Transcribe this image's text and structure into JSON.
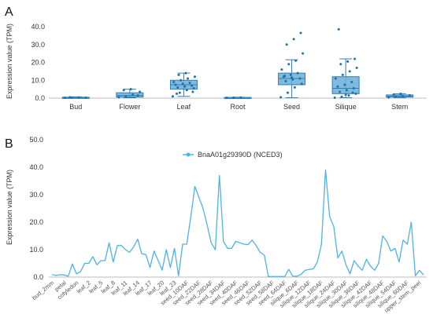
{
  "panels": {
    "a": {
      "letter": "A"
    },
    "b": {
      "letter": "B"
    }
  },
  "colors": {
    "box_fill": "#6aaed6",
    "box_stroke": "#2f7fb5",
    "point": "#1f6fa8",
    "line": "#4db3e6",
    "axis": "#666666",
    "grid": "#e6e6e6",
    "text": "#333333"
  },
  "chart_data": [
    {
      "type": "box",
      "ylabel": "Expression value (TPM)",
      "ylim": [
        0,
        40
      ],
      "yticks": [
        "0.0",
        "10.0",
        "20.0",
        "30.0",
        "40.0"
      ],
      "categories": [
        "Bud",
        "Flower",
        "Leaf",
        "Root",
        "Seed",
        "Silique",
        "Stem"
      ],
      "boxes": [
        {
          "min": 0.1,
          "q1": 0.2,
          "median": 0.3,
          "q3": 0.5,
          "max": 0.7
        },
        {
          "min": 0.2,
          "q1": 0.6,
          "median": 1.5,
          "q3": 3.0,
          "max": 5.0
        },
        {
          "min": 1.0,
          "q1": 5.0,
          "median": 7.5,
          "q3": 10.0,
          "max": 14.0
        },
        {
          "min": 0.1,
          "q1": 0.2,
          "median": 0.3,
          "q3": 0.4,
          "max": 0.5
        },
        {
          "min": 0.2,
          "q1": 7.5,
          "median": 11.0,
          "q3": 14.0,
          "max": 21.5
        },
        {
          "min": 0.2,
          "q1": 2.5,
          "median": 5.5,
          "q3": 12.0,
          "max": 22.0
        },
        {
          "min": 0.3,
          "q1": 0.6,
          "median": 1.0,
          "q3": 1.8,
          "max": 2.5
        }
      ],
      "points": [
        [
          0.2,
          0.3,
          0.4,
          0.3,
          0.5
        ],
        [
          0.5,
          1.0,
          2.0,
          3.5,
          4.5,
          5.0,
          1.5
        ],
        [
          1.0,
          3.0,
          4.5,
          5.5,
          6.0,
          6.5,
          7.0,
          7.5,
          8.0,
          8.5,
          9.0,
          10.0,
          11.0,
          12.0,
          13.0,
          14.0,
          3.5,
          2.5
        ],
        [
          0.2,
          0.3,
          0.4
        ],
        [
          0.5,
          3.0,
          6.0,
          8.0,
          9.5,
          10.5,
          11.0,
          12.0,
          13.0,
          14.0,
          16.0,
          19.0,
          21.0,
          25.0,
          30.0,
          33.0,
          36.5,
          12.5,
          11.5
        ],
        [
          0.2,
          0.8,
          1.5,
          2.5,
          3.5,
          4.5,
          5.5,
          6.5,
          7.5,
          9.0,
          11.0,
          13.0,
          15.0,
          17.0,
          19.0,
          20.5,
          22.0,
          38.5,
          2.0,
          3.0
        ],
        [
          0.4,
          0.8,
          1.2,
          1.6,
          2.0,
          2.4
        ]
      ]
    },
    {
      "type": "line",
      "ylabel": "Expression value (TPM)",
      "ylim": [
        0,
        50
      ],
      "yticks": [
        "0.0",
        "10.0",
        "20.0",
        "30.0",
        "40.0",
        "50.0"
      ],
      "legend": "top-center",
      "series": [
        {
          "name": "BnaA01g29390D (NCED3)",
          "values": [
            0.9,
            0.6,
            0.9,
            0.8,
            0.3,
            4.8,
            1.2,
            2.0,
            5.0,
            5.0,
            7.5,
            4.5,
            6.0,
            6.0,
            12.5,
            5.5,
            11.5,
            11.5,
            10.0,
            9.0,
            11.0,
            13.8,
            8.5,
            8.2,
            3.5,
            9.5,
            6.0,
            2.5,
            10.0,
            3.5,
            10.5,
            0.5,
            12.0,
            12.0,
            22.0,
            33.0,
            29.0,
            25.0,
            19.0,
            12.5,
            10.0,
            37.0,
            13.0,
            10.5,
            10.5,
            13.0,
            12.5,
            12.0,
            11.8,
            13.5,
            11.5,
            9.0,
            8.0,
            0.2,
            0.2,
            0.2,
            0.2,
            0.2,
            2.8,
            0.3,
            0.3,
            1.0,
            2.5,
            2.8,
            3.0,
            5.5,
            12.0,
            39.0,
            22.0,
            18.5,
            7.0,
            9.5,
            4.5,
            1.2,
            6.0,
            4.0,
            2.5,
            6.5,
            4.0,
            2.5,
            5.0,
            15.0,
            13.0,
            9.5,
            10.5,
            5.5,
            13.5,
            12.0,
            20.0,
            0.5,
            2.5,
            0.8
          ]
        }
      ],
      "x_tick_labels": [
        "bud_2mm",
        "petal",
        "cotyledon",
        "leaf_2",
        "leaf_5",
        "leaf_8",
        "leaf_11",
        "leaf_14",
        "leaf_17",
        "leaf_20",
        "leaf_23",
        "seed_10DAF",
        "seed_22DAF",
        "seed_28DAF",
        "seed_34DAF",
        "seed_40DAF",
        "seed_46DAF",
        "seed_52DAF",
        "seed_58DAF",
        "seed_64DAF",
        "silique_6DAF",
        "silique_12DAF",
        "silique_18DAF",
        "silique_24DAF",
        "silique_30DAF",
        "silique_36DAF",
        "silique_42DAF",
        "silique_48DAF",
        "silique_54DAF",
        "silique_60DAF",
        "upper_stem_peel"
      ]
    }
  ]
}
